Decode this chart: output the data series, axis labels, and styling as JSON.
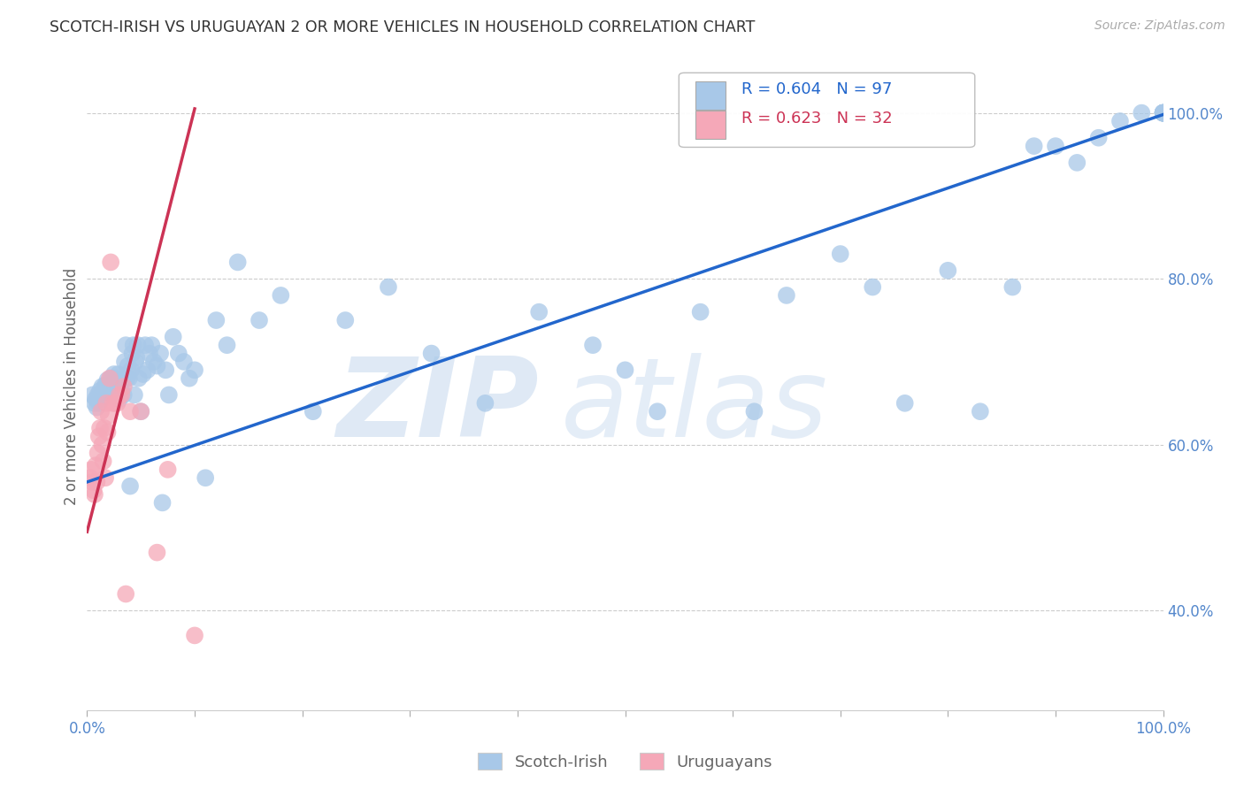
{
  "title": "SCOTCH-IRISH VS URUGUAYAN 2 OR MORE VEHICLES IN HOUSEHOLD CORRELATION CHART",
  "source_text": "Source: ZipAtlas.com",
  "ylabel": "2 or more Vehicles in Household",
  "watermark_zip": "ZIP",
  "watermark_atlas": "atlas",
  "scotch_irish_r": 0.604,
  "scotch_irish_n": 97,
  "uruguayan_r": 0.623,
  "uruguayan_n": 32,
  "scotch_irish_color": "#a8c8e8",
  "uruguayan_color": "#f5a8b8",
  "scotch_irish_line_color": "#2266cc",
  "uruguayan_line_color": "#cc3355",
  "background_color": "#ffffff",
  "grid_color": "#cccccc",
  "title_color": "#333333",
  "axis_label_color": "#666666",
  "tick_color": "#5588cc",
  "xlim": [
    0.0,
    1.0
  ],
  "ylim": [
    0.28,
    1.06
  ],
  "yticks": [
    0.4,
    0.6,
    0.8,
    1.0
  ],
  "ytick_labels": [
    "40.0%",
    "60.0%",
    "80.0%",
    "100.0%"
  ],
  "si_x": [
    0.005,
    0.007,
    0.008,
    0.009,
    0.01,
    0.011,
    0.012,
    0.013,
    0.014,
    0.015,
    0.016,
    0.017,
    0.018,
    0.019,
    0.02,
    0.021,
    0.022,
    0.023,
    0.024,
    0.025,
    0.026,
    0.027,
    0.028,
    0.029,
    0.03,
    0.031,
    0.032,
    0.033,
    0.034,
    0.035,
    0.036,
    0.037,
    0.038,
    0.039,
    0.04,
    0.041,
    0.042,
    0.043,
    0.044,
    0.045,
    0.046,
    0.047,
    0.048,
    0.05,
    0.052,
    0.054,
    0.056,
    0.058,
    0.06,
    0.062,
    0.065,
    0.068,
    0.07,
    0.073,
    0.076,
    0.08,
    0.085,
    0.09,
    0.095,
    0.1,
    0.11,
    0.12,
    0.13,
    0.14,
    0.16,
    0.18,
    0.21,
    0.24,
    0.28,
    0.32,
    0.37,
    0.42,
    0.47,
    0.5,
    0.53,
    0.57,
    0.62,
    0.65,
    0.7,
    0.73,
    0.76,
    0.8,
    0.83,
    0.86,
    0.88,
    0.9,
    0.92,
    0.94,
    0.96,
    0.98,
    1.0,
    1.0,
    1.0,
    1.0,
    1.0,
    1.0,
    1.0
  ],
  "si_y": [
    0.66,
    0.65,
    0.655,
    0.645,
    0.66,
    0.65,
    0.665,
    0.655,
    0.67,
    0.66,
    0.668,
    0.672,
    0.66,
    0.678,
    0.665,
    0.66,
    0.68,
    0.67,
    0.675,
    0.685,
    0.67,
    0.68,
    0.66,
    0.685,
    0.655,
    0.675,
    0.665,
    0.68,
    0.66,
    0.7,
    0.72,
    0.68,
    0.695,
    0.68,
    0.55,
    0.69,
    0.71,
    0.72,
    0.66,
    0.7,
    0.705,
    0.72,
    0.68,
    0.64,
    0.685,
    0.72,
    0.69,
    0.71,
    0.72,
    0.7,
    0.695,
    0.71,
    0.53,
    0.69,
    0.66,
    0.73,
    0.71,
    0.7,
    0.68,
    0.69,
    0.56,
    0.75,
    0.72,
    0.82,
    0.75,
    0.78,
    0.64,
    0.75,
    0.79,
    0.71,
    0.65,
    0.76,
    0.72,
    0.69,
    0.64,
    0.76,
    0.64,
    0.78,
    0.83,
    0.79,
    0.65,
    0.81,
    0.64,
    0.79,
    0.96,
    0.96,
    0.94,
    0.97,
    0.99,
    1.0,
    1.0,
    1.0,
    1.0,
    1.0,
    1.0,
    1.0,
    1.0
  ],
  "uy_x": [
    0.003,
    0.004,
    0.005,
    0.006,
    0.007,
    0.008,
    0.009,
    0.01,
    0.011,
    0.012,
    0.013,
    0.014,
    0.015,
    0.016,
    0.017,
    0.018,
    0.019,
    0.02,
    0.021,
    0.022,
    0.024,
    0.026,
    0.028,
    0.03,
    0.032,
    0.034,
    0.036,
    0.04,
    0.05,
    0.065,
    0.075,
    0.1
  ],
  "uy_y": [
    0.56,
    0.57,
    0.555,
    0.545,
    0.54,
    0.575,
    0.555,
    0.59,
    0.61,
    0.62,
    0.64,
    0.6,
    0.58,
    0.62,
    0.56,
    0.65,
    0.615,
    0.635,
    0.68,
    0.82,
    0.65,
    0.65,
    0.65,
    0.66,
    0.66,
    0.67,
    0.42,
    0.64,
    0.64,
    0.47,
    0.57,
    0.37
  ],
  "si_line_x0": 0.0,
  "si_line_y0": 0.555,
  "si_line_x1": 1.0,
  "si_line_y1": 0.998,
  "uy_line_x0": 0.0,
  "uy_line_y0": 0.495,
  "uy_line_x1": 0.1,
  "uy_line_y1": 1.005
}
